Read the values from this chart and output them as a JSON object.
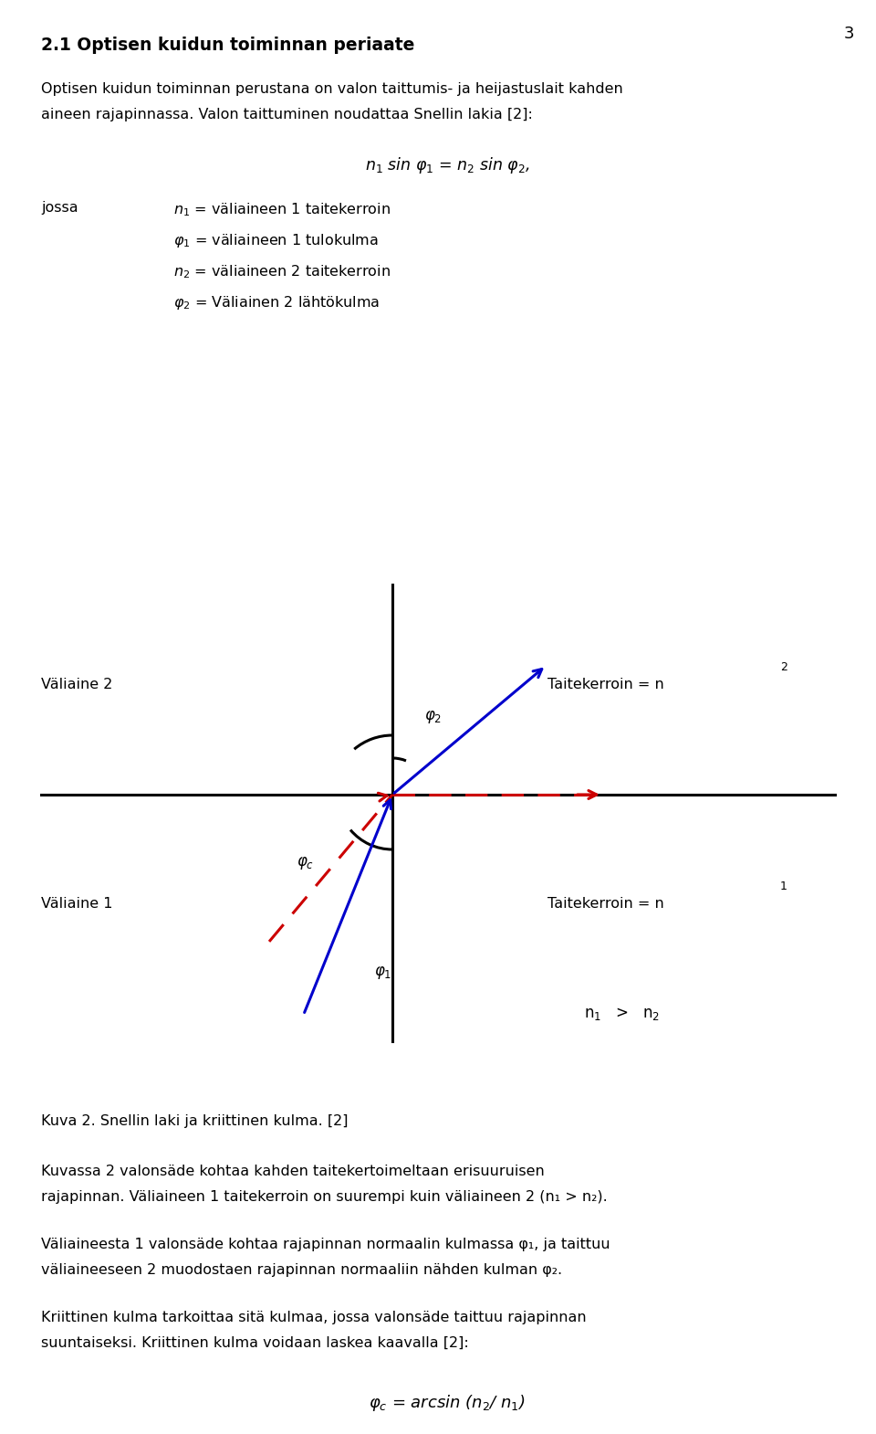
{
  "page_number": "3",
  "heading": "2.1 Optisen kuidun toiminnan periaate",
  "para1_line1": "Optisen kuidun toiminnan perustana on valon taittumis- ja heijastuslait kahden",
  "para1_line2": "aineen rajapinnassa. Valon taittuminen noudattaa Snellin lakia [2]:",
  "formula_snell": "$n_1$ sin $\\varphi_1$ = $n_2$ sin $\\varphi_2$,",
  "jossa": "jossa",
  "def1": "$n_1$ = väliaineen 1 taitekerroin",
  "def2": "$\\varphi_1$ = väliaineen 1 tulokulma",
  "def3": "$n_2$ = väliaineen 2 taitekerroin",
  "def4": "$\\varphi_2$ = Väliainen 2 lähtökulma",
  "fig_valine2": "Väliaine 2",
  "fig_valine1": "Väliaine 1",
  "fig_taite2": "Taitekerroin = n",
  "fig_taite2_sub": "2",
  "fig_taite1": "Taitekerroin = n",
  "fig_taite1_sub": "1",
  "fig_n1n2": "n",
  "fig_caption": "Kuva 2. Snellin laki ja kriittinen kulma. [2]",
  "para2_line1": "Kuvassa 2 valonsäde kohtaa kahden taitekertoimeltaan erisuuruisen",
  "para2_line2": "rajapinnan. Väliaineen 1 taitekerroin on suurempi kuin väliaineen 2 (n₁ > n₂).",
  "para3_line1": "Väliaineesta 1 valonsäde kohtaa rajapinnan normaalin kulmassa φ₁, ja taittuu",
  "para3_line2": "väliaineeseen 2 muodostaen rajapinnan normaaliin nähden kulman φ₂.",
  "para4_line1": "Kriittinen kulma tarkoittaa sitä kulmaa, jossa valonsäde taittuu rajapinnan",
  "para4_line2": "suuntaiseksi. Kriittinen kulma voidaan laskea kaavalla [2]:",
  "formula_critical": "$\\varphi_c$ = arcsin ($n_2$/ $n_1$)",
  "background_color": "#ffffff",
  "text_color": "#000000",
  "blue_color": "#0000cc",
  "red_color": "#cc0000"
}
